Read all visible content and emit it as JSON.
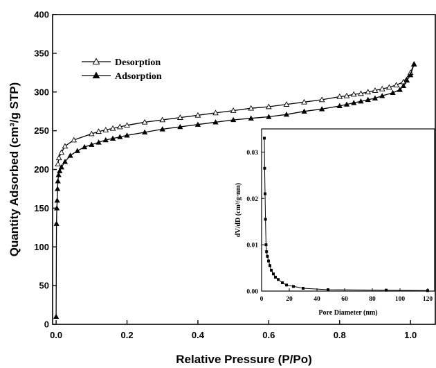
{
  "colors": {
    "line": "#000000",
    "open_marker_fill": "#ffffff",
    "filled_marker_fill": "#000000"
  },
  "chart_data": [
    {
      "type": "line",
      "title": "",
      "xlabel": "Relative Pressure (P/Po)",
      "ylabel": "Quantity Adsorbed (cm³/g STP)",
      "xlim": [
        -0.01,
        1.07
      ],
      "ylim": [
        0,
        400
      ],
      "xticks": [
        0.0,
        0.2,
        0.4,
        0.6,
        0.8,
        1.0
      ],
      "xtick_labels": [
        "0.0",
        "0.2",
        "0.4",
        "0.6",
        "0.8",
        "1.0"
      ],
      "yticks": [
        0,
        50,
        100,
        150,
        200,
        250,
        300,
        350,
        400
      ],
      "ytick_labels": [
        "0",
        "50",
        "100",
        "150",
        "200",
        "250",
        "300",
        "350",
        "400"
      ],
      "grid": false,
      "legend_position": "top-left",
      "series": [
        {
          "name": "Desorption",
          "marker": "open-triangle",
          "x": [
            0.005,
            0.008,
            0.015,
            0.025,
            0.05,
            0.1,
            0.12,
            0.14,
            0.16,
            0.18,
            0.2,
            0.25,
            0.3,
            0.35,
            0.4,
            0.45,
            0.5,
            0.55,
            0.6,
            0.65,
            0.7,
            0.75,
            0.8,
            0.82,
            0.84,
            0.86,
            0.88,
            0.9,
            0.92,
            0.94,
            0.96,
            0.98,
            1.0,
            1.01
          ],
          "y": [
            207,
            215,
            222,
            230,
            238,
            246,
            249,
            251,
            253,
            255,
            257,
            261,
            264,
            267,
            270,
            273,
            276,
            279,
            281,
            284,
            287,
            290,
            294,
            295,
            297,
            298,
            300,
            302,
            304,
            306,
            309,
            313,
            325,
            336
          ]
        },
        {
          "name": "Adsorption",
          "marker": "filled-triangle",
          "x": [
            0.0,
            0.001,
            0.002,
            0.003,
            0.004,
            0.005,
            0.007,
            0.01,
            0.015,
            0.025,
            0.04,
            0.06,
            0.08,
            0.1,
            0.12,
            0.14,
            0.16,
            0.18,
            0.2,
            0.25,
            0.3,
            0.35,
            0.4,
            0.45,
            0.5,
            0.55,
            0.6,
            0.65,
            0.7,
            0.75,
            0.8,
            0.82,
            0.84,
            0.86,
            0.88,
            0.9,
            0.92,
            0.95,
            0.97,
            0.98,
            0.99,
            1.0,
            1.01
          ],
          "y": [
            10,
            130,
            150,
            160,
            175,
            185,
            193,
            198,
            203,
            210,
            218,
            224,
            229,
            232,
            235,
            238,
            240,
            242,
            244,
            248,
            252,
            255,
            258,
            261,
            264,
            266,
            268,
            271,
            275,
            278,
            282,
            284,
            286,
            288,
            290,
            292,
            295,
            299,
            303,
            308,
            315,
            322,
            336
          ]
        }
      ]
    },
    {
      "type": "line",
      "title": "",
      "xlabel": "Pore Diameter (nm)",
      "ylabel": "dV/dD (cm³/g·nm)",
      "xlim": [
        0,
        125
      ],
      "ylim": [
        0,
        0.035
      ],
      "xticks": [
        0,
        20,
        40,
        60,
        80,
        100,
        120
      ],
      "xtick_labels": [
        "0",
        "20",
        "40",
        "60",
        "80",
        "100",
        "120"
      ],
      "yticks": [
        0.0,
        0.01,
        0.02,
        0.03
      ],
      "ytick_labels": [
        "0.00",
        "0.01",
        "0.02",
        "0.03"
      ],
      "grid": false,
      "series": [
        {
          "marker": "filled-square",
          "x": [
            2.0,
            2.2,
            2.5,
            2.8,
            3.2,
            3.6,
            4.2,
            5.0,
            6.0,
            7.0,
            8.5,
            10,
            12,
            15,
            18,
            23,
            30,
            48,
            90,
            120
          ],
          "y": [
            0.033,
            0.0265,
            0.021,
            0.0155,
            0.01,
            0.0085,
            0.0075,
            0.0065,
            0.0055,
            0.0045,
            0.0037,
            0.003,
            0.0025,
            0.0018,
            0.0013,
            0.001,
            0.0006,
            0.0003,
            0.0002,
            0.0001
          ]
        }
      ]
    }
  ]
}
